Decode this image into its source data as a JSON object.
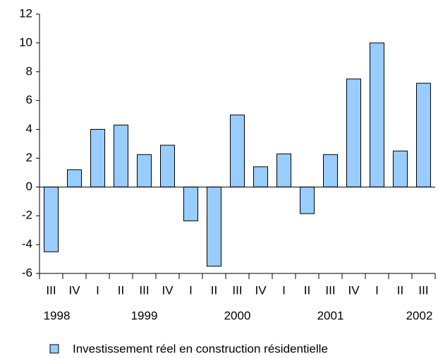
{
  "chart_data": {
    "type": "bar",
    "categories": [
      "III",
      "IV",
      "I",
      "II",
      "III",
      "IV",
      "I",
      "II",
      "III",
      "IV",
      "I",
      "II",
      "III",
      "IV",
      "I",
      "II",
      "III"
    ],
    "year_labels": [
      "1998",
      null,
      null,
      null,
      "1999",
      null,
      null,
      null,
      "2000",
      null,
      null,
      null,
      "2001",
      null,
      null,
      null,
      "2002"
    ],
    "series": [
      {
        "name": "Investissement réel en construction résidentielle",
        "color": "#99ccff",
        "values": [
          -4.5,
          1.2,
          4.0,
          4.3,
          2.25,
          2.9,
          -2.35,
          -5.5,
          5.0,
          1.4,
          2.3,
          -1.85,
          2.25,
          7.5,
          10.0,
          2.5,
          7.2
        ]
      }
    ],
    "ylim": [
      -6,
      12
    ],
    "yticks": [
      -6,
      -4,
      -2,
      0,
      2,
      4,
      6,
      8,
      10,
      12
    ],
    "grid": false,
    "legend": "bottom"
  }
}
